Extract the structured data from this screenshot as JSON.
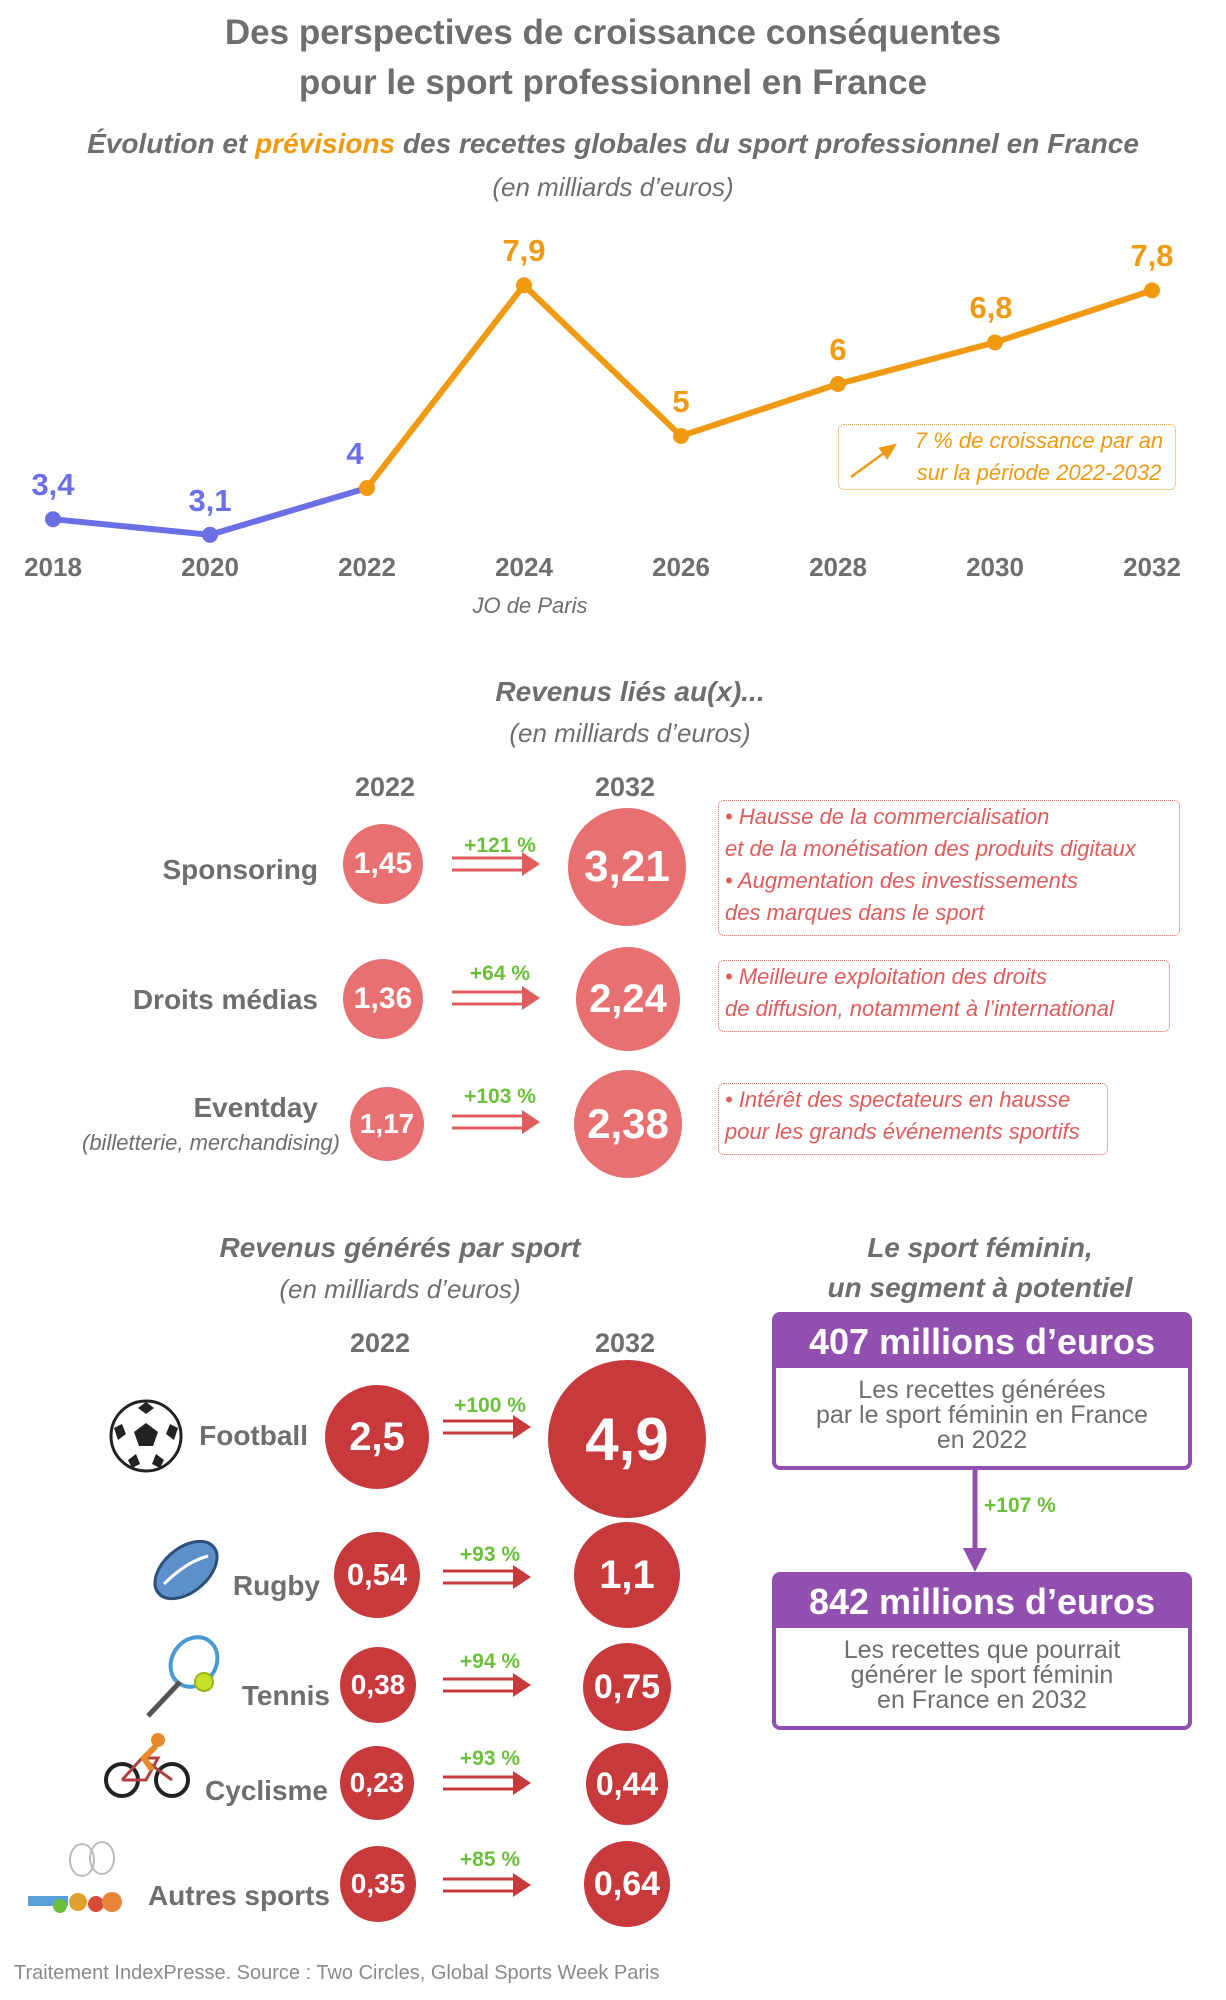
{
  "title": {
    "line1": "Des perspectives de croissance conséquentes",
    "line2": "pour le sport professionnel en France"
  },
  "subtitle": {
    "part1": "Évolution et ",
    "highlight": "prévisions",
    "part2": " des recettes globales du sport professionnel en France",
    "unit": "(en milliards d’euros)"
  },
  "colors": {
    "historical": "#6b6fe6",
    "forecast": "#f09a11",
    "pink": "#e87070",
    "red": "#c7393b",
    "green": "#6bbf3a",
    "purple": "#9150b0"
  },
  "chart_data": [
    {
      "type": "line",
      "x": [
        "2018",
        "2020",
        "2022",
        "2024",
        "2026",
        "2028",
        "2030",
        "2032"
      ],
      "series": [
        {
          "values": [
            3.4,
            3.1,
            4.0,
            null,
            null,
            null,
            null,
            null
          ],
          "color": "#6b6fe6"
        },
        {
          "values": [
            null,
            null,
            4.0,
            7.9,
            5,
            6,
            6.8,
            7.8
          ],
          "color": "#f09a11"
        }
      ],
      "point_labels": [
        "3,4",
        "3,1",
        "4",
        "7,9",
        "5",
        "6",
        "6,8",
        "7,8"
      ],
      "x_annotation": "JO de Paris",
      "callout": {
        "line1": "7 % de croissance par an",
        "line2": "sur la période 2022-2032"
      },
      "ylim": [
        3,
        8
      ]
    },
    {
      "type": "table",
      "title": "Revenus liés au(x)...",
      "unit": "(en milliards d’euros)",
      "columns": [
        "2022",
        "2032"
      ],
      "rows": [
        {
          "label": "Sponsoring",
          "sub": "",
          "v2022": "1,45",
          "v2032": "3,21",
          "growth": "+121 %",
          "notes": [
            "• Hausse de la commercialisation",
            "et de la monétisation des produits digitaux",
            "• Augmentation des investissements",
            "des marques dans le sport"
          ]
        },
        {
          "label": "Droits médias",
          "sub": "",
          "v2022": "1,36",
          "v2032": "2,24",
          "growth": "+64 %",
          "notes": [
            "• Meilleure exploitation des droits",
            "de diffusion, notamment à l’international"
          ]
        },
        {
          "label": "Eventday",
          "sub": "(billetterie, merchandising)",
          "v2022": "1,17",
          "v2032": "2,38",
          "growth": "+103 %",
          "notes": [
            "• Intérêt des spectateurs en hausse",
            "pour les grands événements sportifs"
          ]
        }
      ]
    },
    {
      "type": "table",
      "title": "Revenus générés par sport",
      "unit": "(en milliards d’euros)",
      "columns": [
        "2022",
        "2032"
      ],
      "rows": [
        {
          "label": "Football",
          "icon": "football-icon",
          "v2022": "2,5",
          "v2032": "4,9",
          "growth": "+100 %"
        },
        {
          "label": "Rugby",
          "icon": "rugby-ball-icon",
          "v2022": "0,54",
          "v2032": "1,1",
          "growth": "+93 %"
        },
        {
          "label": "Tennis",
          "icon": "tennis-racket-icon",
          "v2022": "0,38",
          "v2032": "0,75",
          "growth": "+94 %"
        },
        {
          "label": "Cyclisme",
          "icon": "cyclist-icon",
          "v2022": "0,23",
          "v2032": "0,44",
          "growth": "+93 %"
        },
        {
          "label": "Autres sports",
          "icon": "sports-equipment-icon",
          "v2022": "0,35",
          "v2032": "0,64",
          "growth": "+85 %"
        }
      ]
    }
  ],
  "feminin": {
    "title1": "Le sport féminin,",
    "title2": "un segment à potentiel",
    "box1_head": "407 millions d’euros",
    "box1_l1": "Les recettes générées",
    "box1_l2": "par le sport féminin en France",
    "box1_l3": "en 2022",
    "growth": "+107 %",
    "box2_head": "842 millions d’euros",
    "box2_l1": "Les recettes que pourrait",
    "box2_l2": "générer le sport féminin",
    "box2_l3": "en France en 2032"
  },
  "footer": "Traitement IndexPresse. Source : Two Circles, Global Sports Week Paris"
}
